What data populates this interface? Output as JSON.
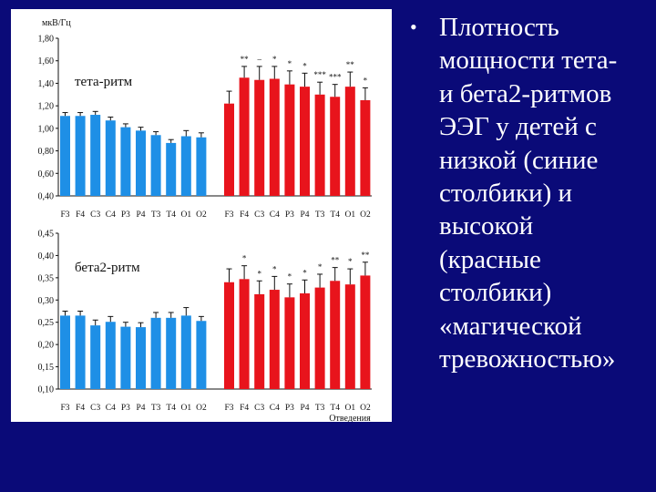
{
  "slide": {
    "bullet_symbol": "•",
    "text": "Плотность\nмощности тета-\nи бета2-ритмов\nЭЭГ у детей с\nнизкой (синие\nстолбики) и\nвысокой\n(красные\nстолбики)\n«магической\nтревожностью»"
  },
  "colors": {
    "low_anxiety": "#1e8fe6",
    "high_anxiety": "#e8141c",
    "background": "#0a0a78"
  },
  "chart_data": [
    {
      "type": "bar",
      "title": "тета-ритм",
      "ylabel": "мкВ/Гц",
      "xlabel": "",
      "ylim": [
        0.4,
        1.8
      ],
      "yticks": [
        "0,40",
        "0,60",
        "0,80",
        "1,00",
        "1,20",
        "1,40",
        "1,60",
        "1,80"
      ],
      "categories": [
        "F3",
        "F4",
        "C3",
        "C4",
        "P3",
        "P4",
        "T3",
        "T4",
        "O1",
        "O2"
      ],
      "series": [
        {
          "color": "#1e8fe6",
          "values": [
            1.11,
            1.11,
            1.12,
            1.07,
            1.01,
            0.98,
            0.94,
            0.87,
            0.93,
            0.92
          ],
          "errors": [
            0.03,
            0.03,
            0.03,
            0.03,
            0.03,
            0.03,
            0.03,
            0.03,
            0.05,
            0.04
          ]
        },
        {
          "color": "#e8141c",
          "values": [
            1.22,
            1.45,
            1.43,
            1.44,
            1.39,
            1.37,
            1.3,
            1.28,
            1.37,
            1.25
          ],
          "errors": [
            0.11,
            0.1,
            0.12,
            0.11,
            0.12,
            0.12,
            0.11,
            0.11,
            0.13,
            0.11
          ]
        }
      ],
      "significance": [
        "",
        "**",
        "–",
        "*",
        "*",
        "*",
        "***",
        "***",
        "**",
        "*"
      ]
    },
    {
      "type": "bar",
      "title": "бета2-ритм",
      "ylabel": "",
      "xlabel": "Отведения",
      "ylim": [
        0.1,
        0.45
      ],
      "yticks": [
        "0,10",
        "0,15",
        "0,20",
        "0,25",
        "0,30",
        "0,35",
        "0,40",
        "0,45"
      ],
      "categories": [
        "F3",
        "F4",
        "C3",
        "C4",
        "P3",
        "P4",
        "T3",
        "T4",
        "O1",
        "O2"
      ],
      "series": [
        {
          "color": "#1e8fe6",
          "values": [
            0.265,
            0.265,
            0.243,
            0.251,
            0.24,
            0.239,
            0.26,
            0.26,
            0.265,
            0.253
          ],
          "errors": [
            0.01,
            0.01,
            0.012,
            0.012,
            0.01,
            0.01,
            0.012,
            0.012,
            0.018,
            0.01
          ]
        },
        {
          "color": "#e8141c",
          "values": [
            0.34,
            0.347,
            0.313,
            0.323,
            0.306,
            0.315,
            0.328,
            0.343,
            0.335,
            0.355
          ],
          "errors": [
            0.03,
            0.03,
            0.03,
            0.03,
            0.03,
            0.03,
            0.03,
            0.03,
            0.035,
            0.03
          ]
        }
      ],
      "significance": [
        "",
        "*",
        "*",
        "*",
        "*",
        "*",
        "*",
        "**",
        "*",
        "**"
      ]
    }
  ]
}
